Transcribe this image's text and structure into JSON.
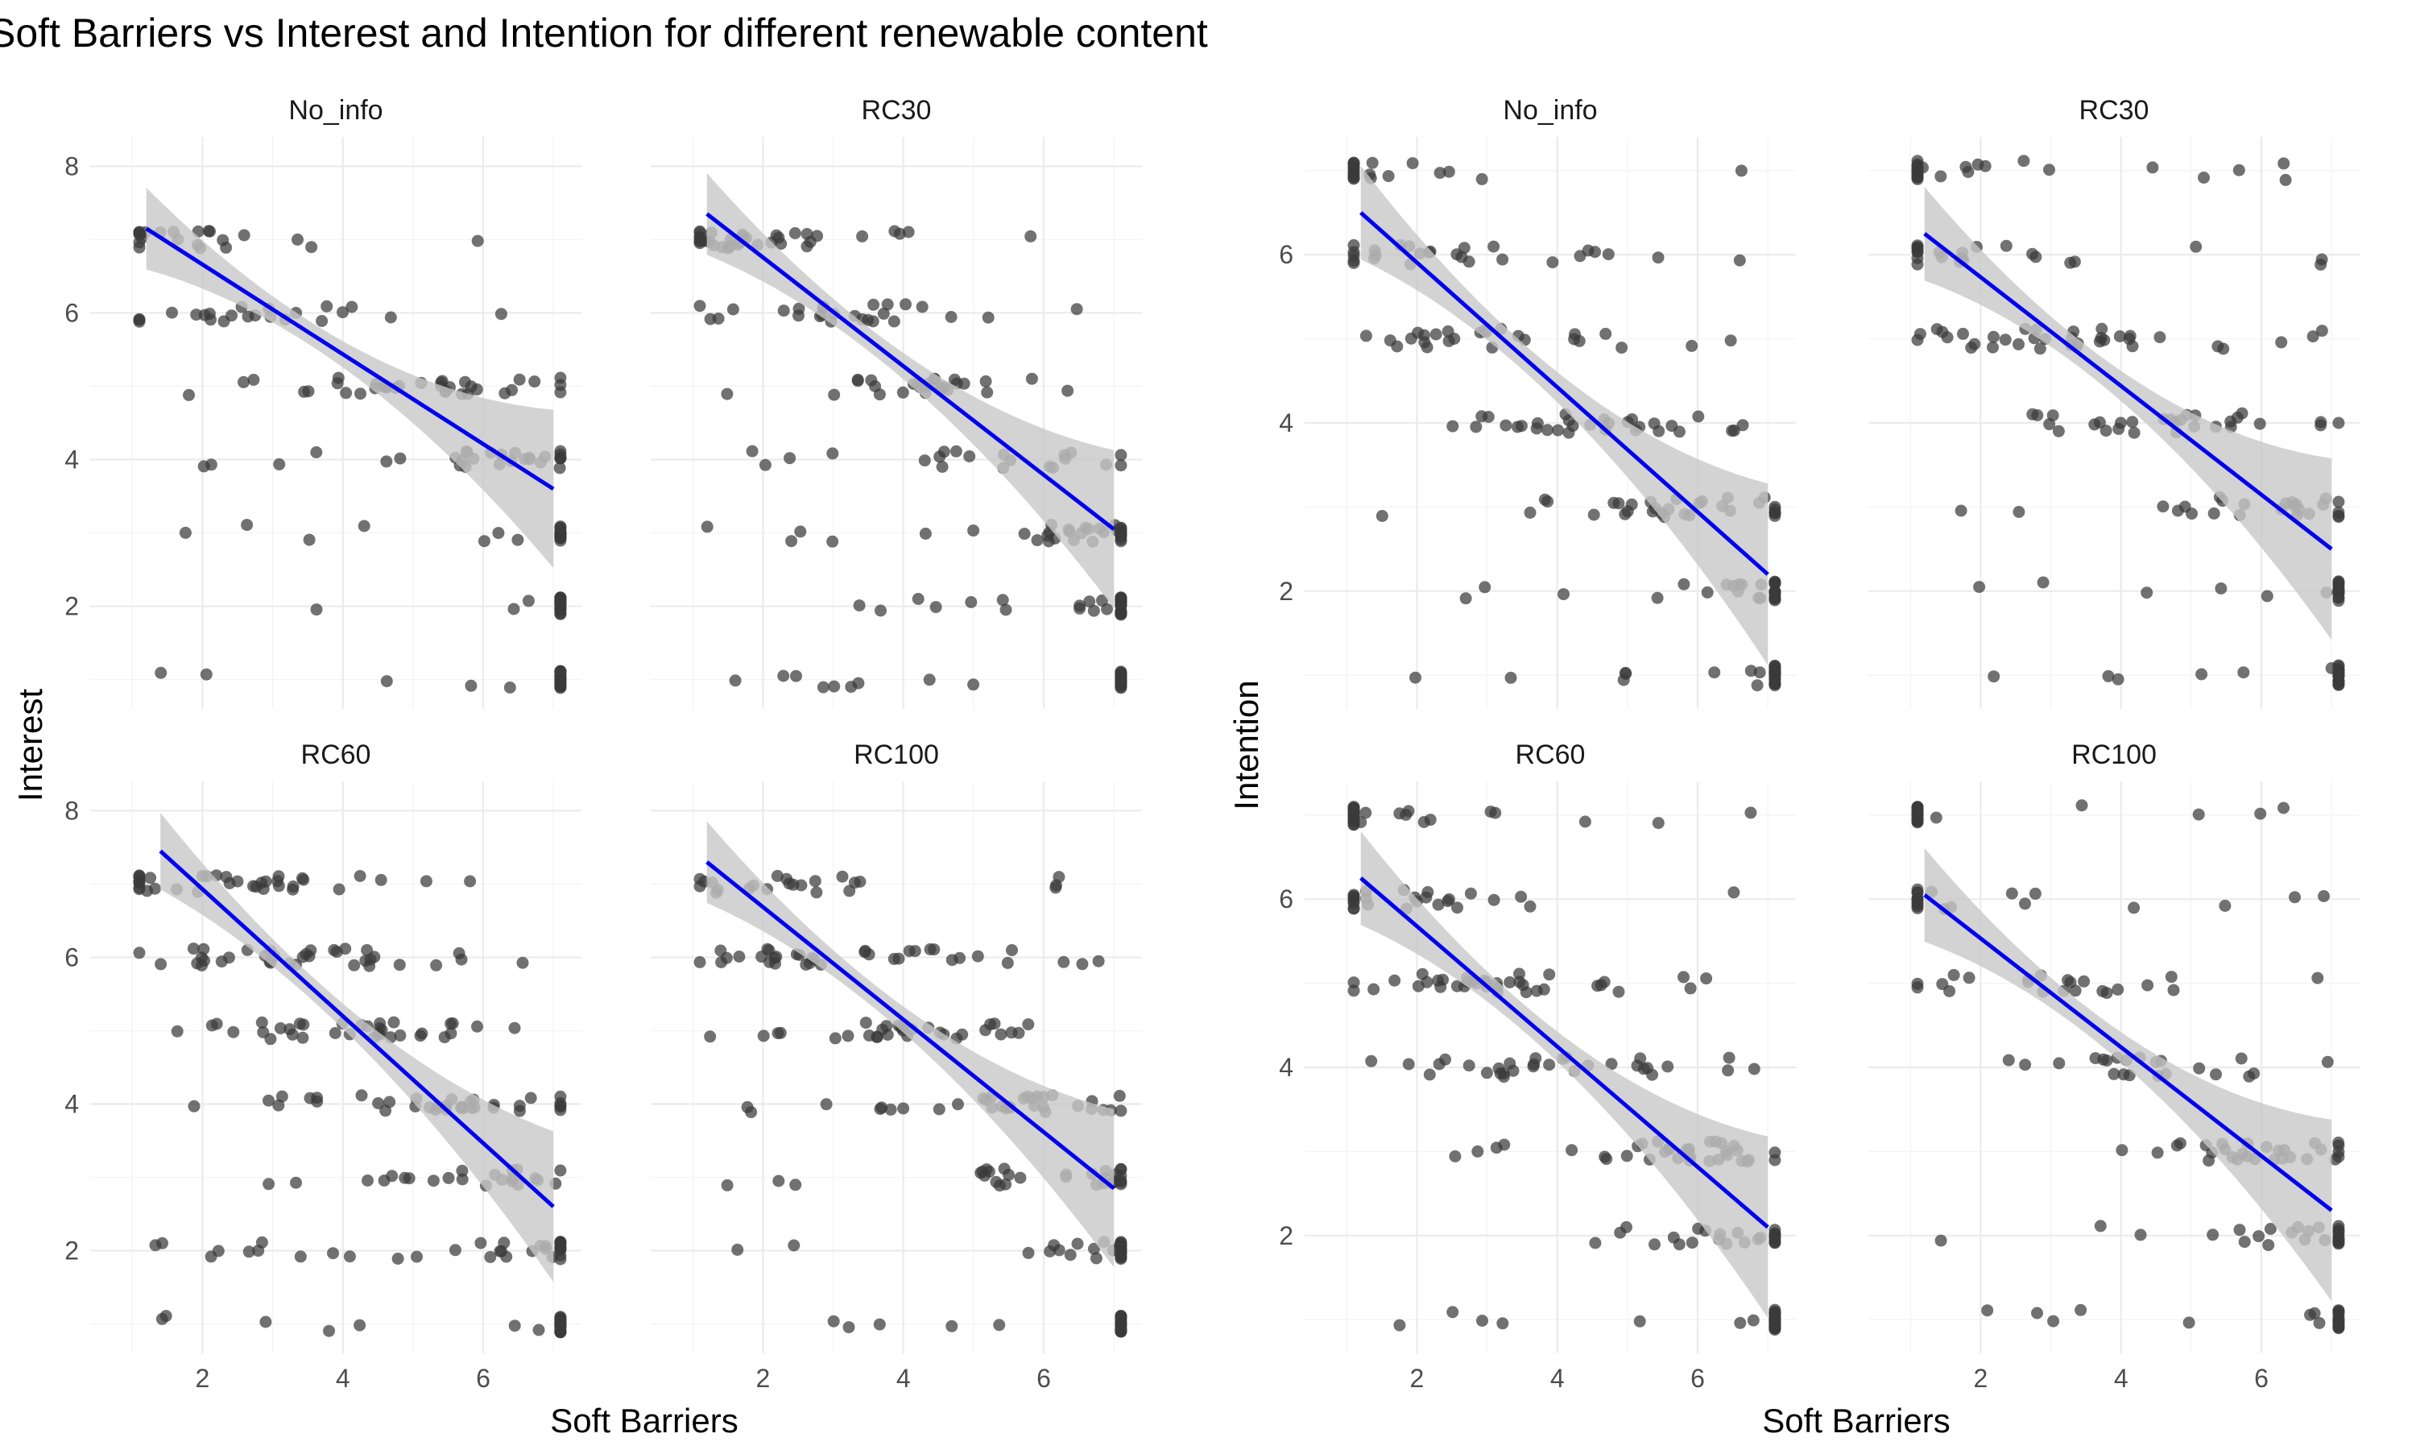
{
  "chart_data": {
    "type": "scatter",
    "title": "Soft Barriers vs  Interest and Intention for different renewable content",
    "x_label": "Soft Barriers",
    "x_ticks": [
      2,
      4,
      6
    ],
    "grid": true,
    "trend": "linear fit with 95% confidence band",
    "colors": {
      "points": "#3a3a3a",
      "fit_line": "#0000ee",
      "ci_band": "#c8c8c8",
      "grid": "#ebebeb"
    },
    "plots": [
      {
        "y_label": "Interest",
        "y_ticks": [
          2,
          4,
          6,
          8
        ],
        "xlim": [
          0.4,
          7.4
        ],
        "ylim": [
          0.6,
          8.4
        ],
        "panels": [
          {
            "name": "No_info",
            "fit": {
              "x0": 1.2,
              "y0": 7.15,
              "x1": 7.0,
              "y1": 3.6
            }
          },
          {
            "name": "RC30",
            "fit": {
              "x0": 1.2,
              "y0": 7.35,
              "x1": 7.0,
              "y1": 3.05
            }
          },
          {
            "name": "RC60",
            "fit": {
              "x0": 1.4,
              "y0": 7.45,
              "x1": 7.0,
              "y1": 2.6
            }
          },
          {
            "name": "RC100",
            "fit": {
              "x0": 1.2,
              "y0": 7.3,
              "x1": 7.0,
              "y1": 2.85
            }
          }
        ]
      },
      {
        "y_label": "Intention",
        "y_ticks": [
          2,
          4,
          6
        ],
        "xlim": [
          0.4,
          7.4
        ],
        "ylim": [
          0.6,
          7.4
        ],
        "panels": [
          {
            "name": "No_info",
            "fit": {
              "x0": 1.2,
              "y0": 6.5,
              "x1": 7.0,
              "y1": 2.2
            }
          },
          {
            "name": "RC30",
            "fit": {
              "x0": 1.2,
              "y0": 6.25,
              "x1": 7.0,
              "y1": 2.5
            }
          },
          {
            "name": "RC60",
            "fit": {
              "x0": 1.2,
              "y0": 6.25,
              "x1": 7.0,
              "y1": 2.1
            }
          },
          {
            "name": "RC100",
            "fit": {
              "x0": 1.2,
              "y0": 6.05,
              "x1": 7.0,
              "y1": 2.3
            }
          }
        ]
      }
    ]
  }
}
